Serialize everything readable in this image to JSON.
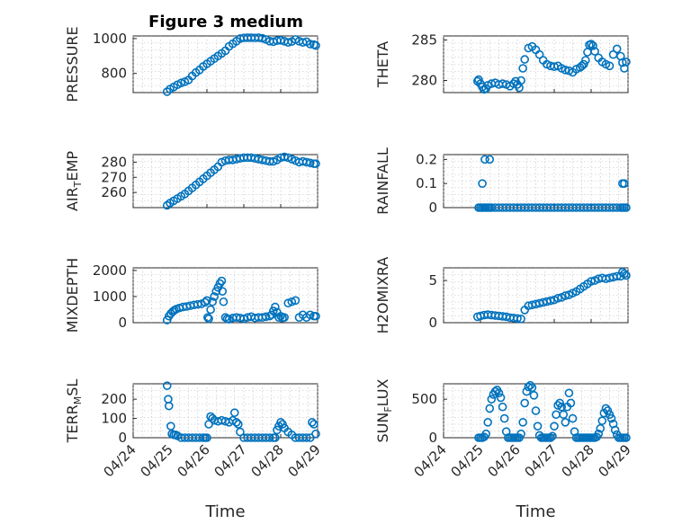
{
  "figure": {
    "title": "Figure 3 medium"
  },
  "colors": {
    "marker": "#0072BD",
    "axis": "#262626",
    "grid": "#bdbdbd"
  },
  "chart_data": [
    {
      "type": "scatter",
      "key": "pressure",
      "title": "Figure 3 medium",
      "ylabel": "PRESSURE",
      "ylabel_sub": "",
      "xlim": [
        0,
        5
      ],
      "ylim": [
        690,
        1015
      ],
      "yticks": [
        800,
        1000
      ],
      "ytick_labels": [
        "800",
        "1000"
      ],
      "xticks": [
        0,
        1,
        2,
        3,
        4,
        5
      ],
      "xtick_labels": [],
      "xlabel": "",
      "x": [
        0.92,
        1.0,
        1.1,
        1.2,
        1.3,
        1.4,
        1.5,
        1.6,
        1.7,
        1.8,
        1.9,
        2.0,
        2.1,
        2.2,
        2.3,
        2.4,
        2.5,
        2.6,
        2.7,
        2.8,
        2.9,
        3.0,
        3.1,
        3.2,
        3.3,
        3.4,
        3.5,
        3.6,
        3.7,
        3.8,
        3.9,
        4.0,
        4.1,
        4.2,
        4.3,
        4.4,
        4.5,
        4.6,
        4.7,
        4.8,
        4.9,
        4.95
      ],
      "y": [
        695,
        710,
        722,
        735,
        745,
        752,
        762,
        785,
        805,
        820,
        840,
        855,
        870,
        885,
        900,
        915,
        930,
        955,
        970,
        985,
        1000,
        1004,
        1005,
        1005,
        1004,
        1005,
        1002,
        995,
        985,
        982,
        988,
        990,
        985,
        978,
        983,
        995,
        985,
        978,
        982,
        968,
        965,
        960
      ]
    },
    {
      "type": "scatter",
      "key": "theta",
      "ylabel": "THETA",
      "ylabel_sub": "",
      "xlim": [
        0,
        5
      ],
      "ylim": [
        278.5,
        285.5
      ],
      "yticks": [
        280,
        285
      ],
      "ytick_labels": [
        "280",
        "285"
      ],
      "xticks": [
        0,
        1,
        2,
        3,
        4,
        5
      ],
      "xtick_labels": [],
      "xlabel": "",
      "x": [
        0.92,
        0.95,
        1.0,
        1.05,
        1.1,
        1.15,
        1.2,
        1.3,
        1.4,
        1.5,
        1.6,
        1.7,
        1.8,
        1.9,
        1.95,
        2.0,
        2.05,
        2.1,
        2.15,
        2.2,
        2.3,
        2.4,
        2.5,
        2.6,
        2.7,
        2.8,
        2.9,
        3.0,
        3.1,
        3.2,
        3.3,
        3.4,
        3.5,
        3.6,
        3.7,
        3.75,
        3.8,
        3.85,
        3.9,
        3.95,
        4.0,
        4.05,
        4.1,
        4.2,
        4.3,
        4.4,
        4.5,
        4.6,
        4.7,
        4.8,
        4.85,
        4.9,
        4.95
      ],
      "y": [
        279.9,
        280.1,
        279.6,
        279.2,
        278.9,
        279.0,
        279.4,
        279.6,
        279.7,
        279.5,
        279.6,
        279.5,
        279.3,
        279.6,
        279.9,
        279.5,
        279.1,
        280.0,
        281.5,
        282.6,
        284.0,
        284.2,
        283.8,
        283.2,
        282.5,
        282.0,
        281.8,
        281.7,
        281.8,
        281.5,
        281.3,
        281.2,
        281.0,
        281.4,
        281.6,
        281.8,
        282.0,
        282.5,
        283.5,
        284.4,
        284.5,
        284.3,
        283.6,
        282.8,
        282.3,
        282.0,
        281.8,
        283.2,
        283.9,
        283.0,
        282.2,
        281.5,
        282.3
      ]
    },
    {
      "type": "scatter",
      "key": "air_temp",
      "ylabel": "AIR",
      "ylabel_sub": "T",
      "ylabel_suffix": "EMP",
      "xlim": [
        0,
        5
      ],
      "ylim": [
        250,
        285
      ],
      "yticks": [
        260,
        270,
        280
      ],
      "ytick_labels": [
        "260",
        "270",
        "280"
      ],
      "xticks": [
        0,
        1,
        2,
        3,
        4,
        5
      ],
      "xtick_labels": [],
      "xlabel": "",
      "x": [
        0.92,
        1.0,
        1.1,
        1.2,
        1.3,
        1.4,
        1.5,
        1.6,
        1.7,
        1.8,
        1.9,
        2.0,
        2.1,
        2.2,
        2.3,
        2.4,
        2.5,
        2.6,
        2.7,
        2.8,
        2.9,
        3.0,
        3.1,
        3.2,
        3.3,
        3.4,
        3.5,
        3.6,
        3.7,
        3.8,
        3.9,
        4.0,
        4.1,
        4.2,
        4.3,
        4.4,
        4.5,
        4.6,
        4.7,
        4.8,
        4.9,
        4.95
      ],
      "y": [
        251.5,
        253,
        254.5,
        256,
        257.5,
        259,
        261,
        263,
        265,
        267,
        269,
        271,
        273,
        275,
        277,
        280,
        281,
        281.5,
        281.5,
        282,
        282.5,
        283,
        283,
        283,
        282.5,
        282,
        281.5,
        281,
        280.5,
        280.5,
        281.5,
        283,
        283.5,
        283,
        282,
        281,
        280,
        280.5,
        280,
        279.5,
        279,
        279
      ]
    },
    {
      "type": "scatter",
      "key": "rainfall",
      "ylabel": "RAINFALL",
      "ylabel_sub": "",
      "xlim": [
        0,
        5
      ],
      "ylim": [
        0,
        0.22
      ],
      "yticks": [
        0,
        0.1,
        0.2
      ],
      "ytick_labels": [
        "0",
        "0.1",
        "0.2"
      ],
      "xticks": [
        0,
        1,
        2,
        3,
        4,
        5
      ],
      "xtick_labels": [],
      "xlabel": "",
      "x": [
        0.95,
        1.0,
        1.05,
        1.1,
        1.15,
        1.2,
        1.25,
        1.3,
        1.4,
        1.5,
        1.6,
        1.7,
        1.8,
        1.9,
        2.0,
        2.1,
        2.2,
        2.3,
        2.4,
        2.5,
        2.6,
        2.7,
        2.8,
        2.9,
        3.0,
        3.1,
        3.2,
        3.3,
        3.4,
        3.5,
        3.6,
        3.7,
        3.8,
        3.9,
        4.0,
        4.1,
        4.2,
        4.3,
        4.4,
        4.5,
        4.6,
        4.7,
        4.8,
        4.85,
        4.9,
        4.95,
        1.05,
        1.12,
        1.25,
        4.85,
        4.9
      ],
      "y": [
        0,
        0,
        0,
        0,
        0,
        0,
        0,
        0,
        0,
        0,
        0,
        0,
        0,
        0,
        0,
        0,
        0,
        0,
        0,
        0,
        0,
        0,
        0,
        0,
        0,
        0,
        0,
        0,
        0,
        0,
        0,
        0,
        0,
        0,
        0,
        0,
        0,
        0,
        0,
        0,
        0,
        0,
        0,
        0,
        0,
        0,
        0.1,
        0.2,
        0.2,
        0.1,
        0.1
      ]
    },
    {
      "type": "scatter",
      "key": "mixdepth",
      "ylabel": "MIXDEPTH",
      "ylabel_sub": "",
      "xlim": [
        0,
        5
      ],
      "ylim": [
        0,
        2100
      ],
      "yticks": [
        0,
        1000,
        2000
      ],
      "ytick_labels": [
        "0",
        "1000",
        "2000"
      ],
      "xticks": [
        0,
        1,
        2,
        3,
        4,
        5
      ],
      "xtick_labels": [],
      "xlabel": "",
      "x": [
        0.92,
        0.97,
        1.02,
        1.07,
        1.12,
        1.17,
        1.25,
        1.35,
        1.45,
        1.55,
        1.65,
        1.75,
        1.85,
        1.95,
        2.0,
        2.02,
        2.05,
        2.1,
        2.15,
        2.2,
        2.25,
        2.3,
        2.35,
        2.4,
        2.42,
        2.45,
        2.5,
        2.55,
        2.6,
        2.7,
        2.8,
        2.9,
        3.0,
        3.1,
        3.2,
        3.3,
        3.4,
        3.5,
        3.6,
        3.7,
        3.75,
        3.8,
        3.85,
        3.9,
        3.95,
        4.0,
        4.05,
        4.1,
        4.2,
        4.3,
        4.4,
        4.5,
        4.6,
        4.7,
        4.8,
        4.9,
        4.95
      ],
      "y": [
        100,
        250,
        350,
        420,
        480,
        520,
        560,
        600,
        620,
        650,
        680,
        700,
        720,
        780,
        850,
        200,
        150,
        500,
        800,
        1000,
        1200,
        1350,
        1500,
        1600,
        1200,
        800,
        200,
        150,
        130,
        180,
        200,
        180,
        150,
        200,
        230,
        180,
        200,
        200,
        230,
        250,
        300,
        450,
        600,
        400,
        200,
        250,
        180,
        200,
        750,
        800,
        850,
        200,
        300,
        200,
        300,
        250,
        250
      ]
    },
    {
      "type": "scatter",
      "key": "h2omixra",
      "ylabel": "H2OMIXRA",
      "ylabel_sub": "",
      "xlim": [
        0,
        5
      ],
      "ylim": [
        0,
        6.5
      ],
      "yticks": [
        0,
        5
      ],
      "ytick_labels": [
        "0",
        "5"
      ],
      "xticks": [
        0,
        1,
        2,
        3,
        4,
        5
      ],
      "xtick_labels": [],
      "xlabel": "",
      "x": [
        0.92,
        1.0,
        1.1,
        1.2,
        1.3,
        1.4,
        1.5,
        1.6,
        1.7,
        1.8,
        1.9,
        2.0,
        2.1,
        2.2,
        2.3,
        2.4,
        2.5,
        2.6,
        2.7,
        2.8,
        2.9,
        3.0,
        3.1,
        3.2,
        3.3,
        3.4,
        3.5,
        3.6,
        3.7,
        3.8,
        3.9,
        4.0,
        4.1,
        4.2,
        4.3,
        4.4,
        4.5,
        4.6,
        4.7,
        4.8,
        4.85,
        4.9,
        4.95
      ],
      "y": [
        0.7,
        0.8,
        0.9,
        0.95,
        0.9,
        0.85,
        0.8,
        0.75,
        0.7,
        0.6,
        0.55,
        0.5,
        0.45,
        1.5,
        2.0,
        2.1,
        2.2,
        2.3,
        2.4,
        2.5,
        2.6,
        2.7,
        2.9,
        3.0,
        3.2,
        3.3,
        3.5,
        3.7,
        4.0,
        4.3,
        4.6,
        4.9,
        5.0,
        5.2,
        5.3,
        5.2,
        5.3,
        5.4,
        5.5,
        5.5,
        6.0,
        5.8,
        5.6
      ]
    },
    {
      "type": "scatter",
      "key": "terr_msl",
      "ylabel": "TERR",
      "ylabel_sub": "M",
      "ylabel_suffix": "SL",
      "xlim": [
        0,
        5
      ],
      "ylim": [
        0,
        280
      ],
      "yticks": [
        0,
        100,
        200
      ],
      "ytick_labels": [
        "0",
        "100",
        "200"
      ],
      "xticks": [
        0,
        1,
        2,
        3,
        4,
        5
      ],
      "xtick_labels": [
        "04/24",
        "04/25",
        "04/26",
        "04/27",
        "04/28",
        "04/29"
      ],
      "xlabel": "Time",
      "x": [
        0.92,
        0.95,
        0.97,
        1.02,
        1.05,
        1.1,
        1.15,
        1.2,
        1.3,
        1.4,
        1.5,
        1.6,
        1.7,
        1.8,
        1.9,
        1.95,
        2.0,
        2.05,
        2.1,
        2.15,
        2.2,
        2.3,
        2.4,
        2.5,
        2.6,
        2.7,
        2.75,
        2.8,
        2.85,
        2.9,
        3.0,
        3.1,
        3.2,
        3.3,
        3.4,
        3.5,
        3.6,
        3.7,
        3.8,
        3.85,
        3.9,
        3.95,
        4.0,
        4.05,
        4.1,
        4.2,
        4.3,
        4.4,
        4.5,
        4.6,
        4.7,
        4.8,
        4.85,
        4.9,
        4.95
      ],
      "y": [
        270,
        200,
        165,
        60,
        20,
        15,
        15,
        10,
        0,
        0,
        0,
        0,
        0,
        0,
        0,
        0,
        0,
        70,
        110,
        100,
        90,
        85,
        90,
        85,
        80,
        90,
        130,
        80,
        70,
        30,
        0,
        0,
        0,
        0,
        0,
        0,
        0,
        0,
        0,
        0,
        40,
        60,
        80,
        70,
        50,
        30,
        15,
        0,
        0,
        0,
        0,
        0,
        80,
        70,
        20
      ]
    },
    {
      "type": "scatter",
      "key": "sun_flux",
      "ylabel": "SUN",
      "ylabel_sub": "F",
      "ylabel_suffix": "LUX",
      "xlim": [
        0,
        5
      ],
      "ylim": [
        0,
        700
      ],
      "yticks": [
        0,
        500
      ],
      "ytick_labels": [
        "0",
        "500"
      ],
      "xticks": [
        0,
        1,
        2,
        3,
        4,
        5
      ],
      "xtick_labels": [
        "04/24",
        "04/25",
        "04/26",
        "04/27",
        "04/28",
        "04/29"
      ],
      "xlabel": "Time",
      "x": [
        0.95,
        1.0,
        1.05,
        1.1,
        1.15,
        1.2,
        1.25,
        1.3,
        1.35,
        1.4,
        1.45,
        1.5,
        1.55,
        1.6,
        1.65,
        1.7,
        1.75,
        1.8,
        1.85,
        1.9,
        1.95,
        2.0,
        2.05,
        2.1,
        2.15,
        2.2,
        2.25,
        2.3,
        2.35,
        2.4,
        2.45,
        2.5,
        2.55,
        2.6,
        2.65,
        2.7,
        2.75,
        2.8,
        2.85,
        2.9,
        2.95,
        3.0,
        3.05,
        3.1,
        3.15,
        3.2,
        3.25,
        3.3,
        3.35,
        3.4,
        3.45,
        3.5,
        3.55,
        3.6,
        3.65,
        3.7,
        3.75,
        3.8,
        3.85,
        3.9,
        3.95,
        4.0,
        4.05,
        4.1,
        4.15,
        4.2,
        4.25,
        4.3,
        4.35,
        4.4,
        4.45,
        4.5,
        4.55,
        4.6,
        4.65,
        4.7,
        4.75,
        4.8,
        4.85,
        4.9,
        4.95
      ],
      "y": [
        0,
        0,
        0,
        10,
        50,
        200,
        380,
        500,
        560,
        600,
        620,
        580,
        520,
        400,
        250,
        80,
        0,
        0,
        0,
        0,
        0,
        0,
        0,
        50,
        200,
        450,
        600,
        660,
        680,
        650,
        550,
        350,
        150,
        30,
        0,
        0,
        0,
        0,
        0,
        0,
        20,
        150,
        300,
        420,
        450,
        400,
        300,
        200,
        400,
        580,
        450,
        250,
        80,
        0,
        0,
        0,
        0,
        0,
        0,
        0,
        0,
        0,
        0,
        0,
        10,
        50,
        120,
        220,
        320,
        380,
        350,
        300,
        250,
        180,
        100,
        40,
        0,
        0,
        0,
        0,
        0
      ]
    }
  ]
}
